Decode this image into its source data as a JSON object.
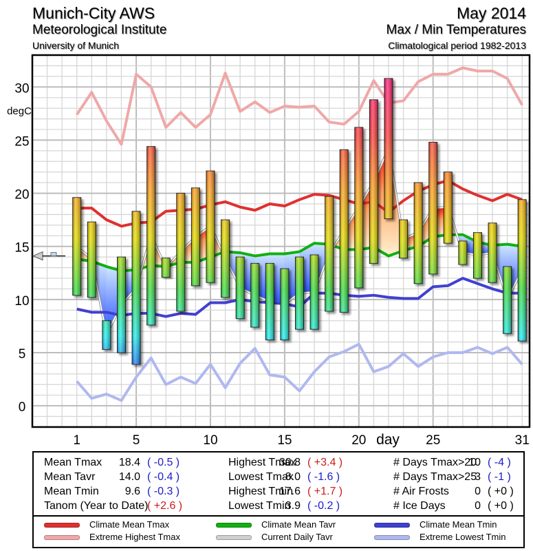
{
  "header": {
    "station": "Munich-City AWS",
    "institute": "Meteorological Institute",
    "university": "University of Munich",
    "period": "May 2014",
    "chart_title": "Max / Min Temperatures",
    "climatology": "Climatological period 1982-2013"
  },
  "chart_data": {
    "type": "bar",
    "title": "Max / Min Temperatures",
    "xlabel": "day",
    "ylabel": "degC",
    "ylim": [
      -2,
      33
    ],
    "xlim": [
      -2,
      31.5
    ],
    "grid": true,
    "x_ticks": [
      1,
      5,
      10,
      15,
      20,
      25,
      31
    ],
    "y_ticks": [
      0,
      5,
      10,
      15,
      20,
      25,
      30
    ],
    "days": [
      1,
      2,
      3,
      4,
      5,
      6,
      7,
      8,
      9,
      10,
      11,
      12,
      13,
      14,
      15,
      16,
      17,
      18,
      19,
      20,
      21,
      22,
      23,
      24,
      25,
      26,
      27,
      28,
      29,
      30,
      31
    ],
    "tmax": [
      19.6,
      17.3,
      8.0,
      14.0,
      18.3,
      24.4,
      13.9,
      20.0,
      20.5,
      22.1,
      17.5,
      14.0,
      13.4,
      13.4,
      12.9,
      14.0,
      14.2,
      19.7,
      24.1,
      26.2,
      28.8,
      30.8,
      17.5,
      21.0,
      24.8,
      22.0,
      15.5,
      16.3,
      17.2,
      13.1,
      19.4
    ],
    "tmin": [
      10.4,
      10.2,
      5.3,
      5.0,
      3.9,
      7.6,
      12.1,
      8.9,
      11.3,
      11.6,
      10.2,
      8.2,
      7.4,
      6.2,
      6.2,
      7.2,
      7.2,
      8.9,
      8.8,
      11.1,
      13.4,
      17.6,
      13.9,
      11.5,
      12.4,
      15.3,
      13.3,
      12.0,
      11.6,
      6.8,
      6.1
    ],
    "series": [
      {
        "name": "Climate Mean Tmax",
        "color": "#e03030",
        "values": [
          18.6,
          18.6,
          17.5,
          16.9,
          17.2,
          17.3,
          18.3,
          18.4,
          18.5,
          18.9,
          19.2,
          18.7,
          18.4,
          19.0,
          18.8,
          19.4,
          19.9,
          19.8,
          19.4,
          19.0,
          19.2,
          18.2,
          19.3,
          20.2,
          20.8,
          21.2,
          20.4,
          19.8,
          19.3,
          19.9,
          19.4
        ]
      },
      {
        "name": "Extreme Highest Tmax",
        "color": "#f0a8a8",
        "values": [
          27.4,
          29.5,
          26.8,
          24.6,
          31.2,
          30.0,
          26.2,
          27.6,
          26.2,
          27.4,
          31.3,
          27.7,
          28.6,
          27.6,
          28.2,
          28.1,
          28.2,
          26.7,
          26.5,
          27.7,
          30.6,
          28.5,
          28.7,
          30.5,
          31.2,
          31.2,
          31.8,
          31.5,
          31.5,
          30.8,
          28.3
        ]
      },
      {
        "name": "Climate Mean Tavr",
        "color": "#10b010",
        "values": [
          13.8,
          13.6,
          13.1,
          12.7,
          12.8,
          13.2,
          13.1,
          13.5,
          13.5,
          14.0,
          14.5,
          14.4,
          14.1,
          14.3,
          14.3,
          14.5,
          15.3,
          15.2,
          14.7,
          14.7,
          14.9,
          14.1,
          14.6,
          15.0,
          15.9,
          16.1,
          16.1,
          15.4,
          15.1,
          15.2,
          15.0
        ]
      },
      {
        "name": "Current Daily Tavr",
        "color": "#c8c8c8",
        "values": [
          15.0,
          13.8,
          6.7,
          9.5,
          11.1,
          16.0,
          13.0,
          14.5,
          15.9,
          16.9,
          13.9,
          11.1,
          10.4,
          9.8,
          9.6,
          10.6,
          10.7,
          14.3,
          16.5,
          18.7,
          21.1,
          24.2,
          15.7,
          16.3,
          18.6,
          18.7,
          14.4,
          14.2,
          14.4,
          10.0,
          12.8
        ]
      },
      {
        "name": "Climate Mean Tmin",
        "color": "#4040d0",
        "values": [
          9.1,
          8.8,
          8.8,
          8.5,
          8.7,
          8.7,
          8.4,
          8.7,
          8.6,
          9.7,
          9.7,
          10.0,
          9.8,
          9.7,
          9.6,
          9.3,
          10.6,
          10.6,
          10.4,
          10.3,
          10.4,
          10.2,
          10.1,
          10.1,
          11.2,
          11.3,
          12.0,
          11.5,
          11.0,
          10.6,
          10.6
        ]
      },
      {
        "name": "Extreme Lowest Tmin",
        "color": "#b0b8f0",
        "values": [
          2.3,
          0.7,
          1.1,
          0.5,
          2.7,
          4.5,
          2.0,
          2.7,
          2.1,
          3.9,
          1.7,
          4.0,
          5.4,
          2.9,
          2.7,
          1.4,
          3.2,
          4.6,
          5.1,
          5.8,
          3.2,
          3.7,
          4.9,
          3.7,
          4.6,
          5.0,
          5.0,
          5.5,
          4.9,
          5.5,
          3.9
        ]
      }
    ],
    "marker": {
      "label": "Tanom indicator",
      "value": 14.1
    }
  },
  "stats": {
    "col1": [
      {
        "label": "Mean Tmax",
        "value": "18.4",
        "anom": "( -0.5 )",
        "sign": "neg"
      },
      {
        "label": "Mean Tavr",
        "value": "14.0",
        "anom": "( -0.4 )",
        "sign": "neg"
      },
      {
        "label": "Mean Tmin",
        "value": "9.6",
        "anom": "( -0.3 )",
        "sign": "neg"
      },
      {
        "label": "Tanom (Year to Date)",
        "value": "",
        "anom": "( +2.6 )",
        "sign": "pos"
      }
    ],
    "col2": [
      {
        "label": "Highest Tmax",
        "value": "30.8",
        "anom": "( +3.4 )",
        "sign": "pos"
      },
      {
        "label": "Lowest Tmax",
        "value": "8.0",
        "anom": "( -1.6 )",
        "sign": "neg"
      },
      {
        "label": "Highest Tmin",
        "value": "17.6",
        "anom": "( +1.7 )",
        "sign": "pos"
      },
      {
        "label": "Lowest Tmin",
        "value": "3.9",
        "anom": "( -0.2 )",
        "sign": "neg"
      }
    ],
    "col3": [
      {
        "label": "# Days Tmax>20",
        "value": "10",
        "anom": "( -4 )",
        "sign": "neg"
      },
      {
        "label": "# Days Tmax>25",
        "value": "3",
        "anom": "( -1 )",
        "sign": "neg"
      },
      {
        "label": "# Air Frosts",
        "value": "0",
        "anom": "( +0 )",
        "sign": "neu"
      },
      {
        "label": "# Ice Days",
        "value": "0",
        "anom": "( +0 )",
        "sign": "neu"
      }
    ]
  },
  "legend": [
    {
      "label": "Climate Mean Tmax",
      "color": "#e03030"
    },
    {
      "label": "Extreme Highest Tmax",
      "color": "#f0a8a8"
    },
    {
      "label": "Climate Mean Tavr",
      "color": "#10b010"
    },
    {
      "label": "Current Daily Tavr",
      "color": "#d0d0d0"
    },
    {
      "label": "Climate Mean Tmin",
      "color": "#4040d0"
    },
    {
      "label": "Extreme Lowest Tmin",
      "color": "#b0b8f0"
    }
  ]
}
